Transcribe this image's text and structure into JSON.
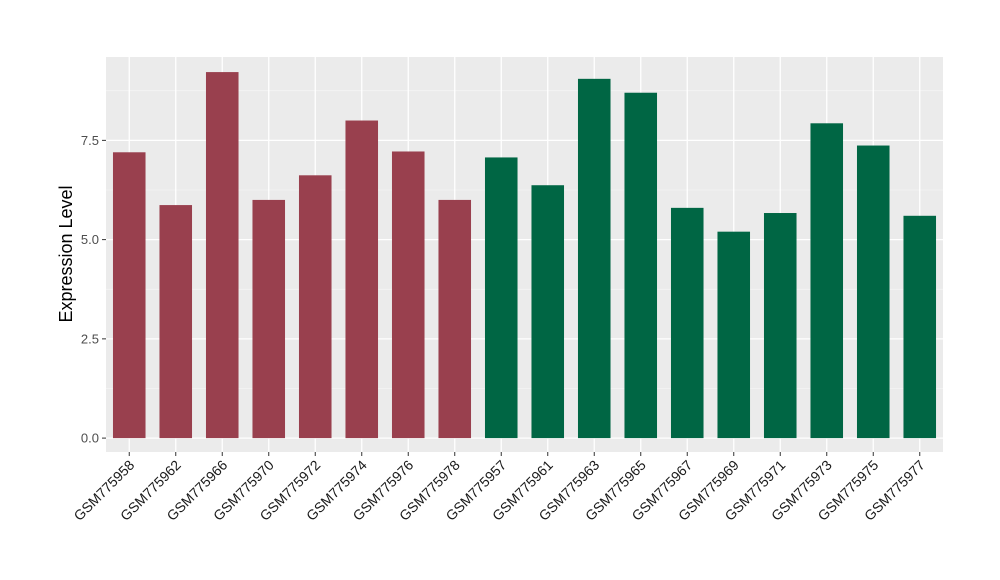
{
  "chart_data": {
    "type": "bar",
    "title": "",
    "xlabel": "",
    "ylabel": "Expression Level",
    "ylim": [
      -0.35,
      9.6
    ],
    "y_ticks": [
      0.0,
      2.5,
      5.0,
      7.5
    ],
    "y_tick_labels": [
      "0.0",
      "2.5",
      "5.0",
      "7.5"
    ],
    "grid": true,
    "legend": "none",
    "panel_background": "#ebebeb",
    "categories": [
      "GSM775958",
      "GSM775962",
      "GSM775966",
      "GSM775970",
      "GSM775972",
      "GSM775974",
      "GSM775976",
      "GSM775978",
      "GSM775957",
      "GSM775961",
      "GSM775963",
      "GSM775965",
      "GSM775967",
      "GSM775969",
      "GSM775971",
      "GSM775973",
      "GSM775975",
      "GSM775977"
    ],
    "values": [
      7.2,
      5.87,
      9.22,
      6.0,
      6.62,
      8.0,
      7.22,
      6.0,
      7.07,
      6.37,
      9.05,
      8.7,
      5.8,
      5.2,
      5.67,
      7.93,
      7.37,
      5.6
    ],
    "colors": [
      "#99404e",
      "#99404e",
      "#99404e",
      "#99404e",
      "#99404e",
      "#99404e",
      "#99404e",
      "#99404e",
      "#006644",
      "#006644",
      "#006644",
      "#006644",
      "#006644",
      "#006644",
      "#006644",
      "#006644",
      "#006644",
      "#006644"
    ]
  }
}
